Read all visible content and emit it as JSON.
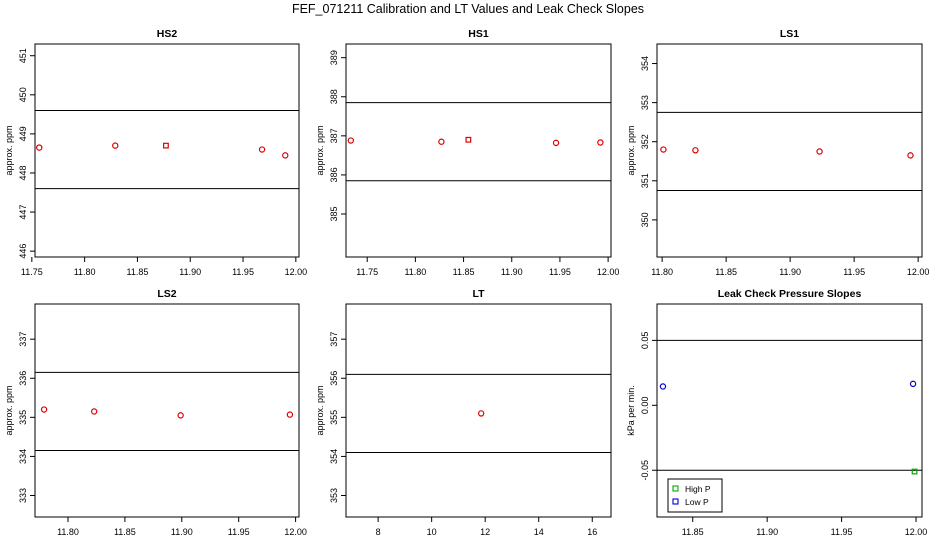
{
  "suptitle": "FEF_071211  Calibration and LT Values and Leak Check Slopes",
  "chart_data": [
    {
      "type": "scatter",
      "title": "HS2",
      "xlabel": "",
      "ylabel": "approx. ppm",
      "xlim": [
        11.753,
        12.003
      ],
      "ylim": [
        445.85,
        451.3
      ],
      "xticks": [
        11.75,
        11.8,
        11.85,
        11.9,
        11.95,
        12.0
      ],
      "xtick_labels": [
        "11.75",
        "11.80",
        "11.85",
        "11.90",
        "11.95",
        "12.00"
      ],
      "yticks": [
        446,
        447,
        448,
        449,
        450,
        451
      ],
      "ytick_labels": [
        "446",
        "447",
        "448",
        "449",
        "450",
        "451"
      ],
      "hlines": [
        447.6,
        449.6
      ],
      "series": [
        {
          "color": "#dd0000",
          "marker": "circle",
          "x": [
            11.757,
            11.829,
            11.968,
            11.99
          ],
          "y": [
            448.65,
            448.7,
            448.6,
            448.45
          ]
        },
        {
          "color": "#dd0000",
          "marker": "square",
          "x": [
            11.877
          ],
          "y": [
            448.7
          ]
        }
      ]
    },
    {
      "type": "scatter",
      "title": "HS1",
      "xlabel": "",
      "ylabel": "approx. ppm",
      "xlim": [
        11.728,
        12.003
      ],
      "ylim": [
        383.9,
        389.35
      ],
      "xticks": [
        11.75,
        11.8,
        11.85,
        11.9,
        11.95,
        12.0
      ],
      "xtick_labels": [
        "11.75",
        "11.80",
        "11.85",
        "11.90",
        "11.95",
        "12.00"
      ],
      "yticks": [
        385,
        386,
        387,
        388,
        389
      ],
      "ytick_labels": [
        "385",
        "386",
        "387",
        "388",
        "389"
      ],
      "hlines": [
        385.85,
        387.85
      ],
      "series": [
        {
          "color": "#dd0000",
          "marker": "circle",
          "x": [
            11.733,
            11.827,
            11.946,
            11.992
          ],
          "y": [
            386.88,
            386.85,
            386.82,
            386.83
          ]
        },
        {
          "color": "#dd0000",
          "marker": "square",
          "x": [
            11.855
          ],
          "y": [
            386.9
          ]
        }
      ]
    },
    {
      "type": "scatter",
      "title": "LS1",
      "xlabel": "",
      "ylabel": "approx. ppm",
      "xlim": [
        11.796,
        12.003
      ],
      "ylim": [
        349.05,
        354.5
      ],
      "xticks": [
        11.8,
        11.85,
        11.9,
        11.95,
        12.0
      ],
      "xtick_labels": [
        "11.80",
        "11.85",
        "11.90",
        "11.95",
        "12.00"
      ],
      "yticks": [
        350,
        351,
        352,
        353,
        354
      ],
      "ytick_labels": [
        "350",
        "351",
        "352",
        "353",
        "354"
      ],
      "hlines": [
        350.75,
        352.75
      ],
      "series": [
        {
          "color": "#dd0000",
          "marker": "circle",
          "x": [
            11.801,
            11.826,
            11.923,
            11.994
          ],
          "y": [
            351.8,
            351.78,
            351.75,
            351.65
          ]
        }
      ]
    },
    {
      "type": "scatter",
      "title": "LS2",
      "xlabel": "",
      "ylabel": "approx. ppm",
      "xlim": [
        11.771,
        12.003
      ],
      "ylim": [
        332.45,
        337.9
      ],
      "xticks": [
        11.8,
        11.85,
        11.9,
        11.95,
        12.0
      ],
      "xtick_labels": [
        "11.80",
        "11.85",
        "11.90",
        "11.95",
        "12.00"
      ],
      "yticks": [
        333,
        334,
        335,
        336,
        337
      ],
      "ytick_labels": [
        "333",
        "334",
        "335",
        "336",
        "337"
      ],
      "hlines": [
        334.15,
        336.15
      ],
      "series": [
        {
          "color": "#dd0000",
          "marker": "circle",
          "x": [
            11.779,
            11.823,
            11.899,
            11.995
          ],
          "y": [
            335.2,
            335.15,
            335.05,
            335.07
          ]
        }
      ]
    },
    {
      "type": "scatter",
      "title": "LT",
      "xlabel": "",
      "ylabel": "approx. ppm",
      "xlim": [
        6.8,
        16.7
      ],
      "ylim": [
        352.45,
        357.9
      ],
      "xticks": [
        8,
        10,
        12,
        14,
        16
      ],
      "xtick_labels": [
        "8",
        "10",
        "12",
        "14",
        "16"
      ],
      "yticks": [
        353,
        354,
        355,
        356,
        357
      ],
      "ytick_labels": [
        "353",
        "354",
        "355",
        "356",
        "357"
      ],
      "hlines": [
        354.1,
        356.1
      ],
      "series": [
        {
          "color": "#dd0000",
          "marker": "circle",
          "x": [
            11.85
          ],
          "y": [
            355.1
          ]
        }
      ]
    },
    {
      "type": "scatter",
      "title": "Leak Check Pressure Slopes",
      "xlabel": "",
      "ylabel": "kPa per min.",
      "xlim": [
        11.826,
        12.004
      ],
      "ylim": [
        -0.086,
        0.078
      ],
      "xticks": [
        11.85,
        11.9,
        11.95,
        12.0
      ],
      "xtick_labels": [
        "11.85",
        "11.90",
        "11.95",
        "12.00"
      ],
      "yticks": [
        -0.05,
        0.0,
        0.05
      ],
      "ytick_labels": [
        "-0.05",
        "0.00",
        "0.05"
      ],
      "hlines": [
        -0.05,
        0.05
      ],
      "legend": {
        "position": "bottom-left",
        "entries": [
          {
            "label": "High P",
            "color": "#00aa00"
          },
          {
            "label": "Low P",
            "color": "#0000cc"
          }
        ]
      },
      "series": [
        {
          "name": "High P",
          "color": "#00aa00",
          "marker": "square",
          "x": [
            11.999
          ],
          "y": [
            -0.051
          ]
        },
        {
          "name": "Low P",
          "color": "#0000cc",
          "marker": "circle",
          "x": [
            11.83,
            11.998
          ],
          "y": [
            0.0145,
            0.0165
          ]
        }
      ]
    }
  ]
}
